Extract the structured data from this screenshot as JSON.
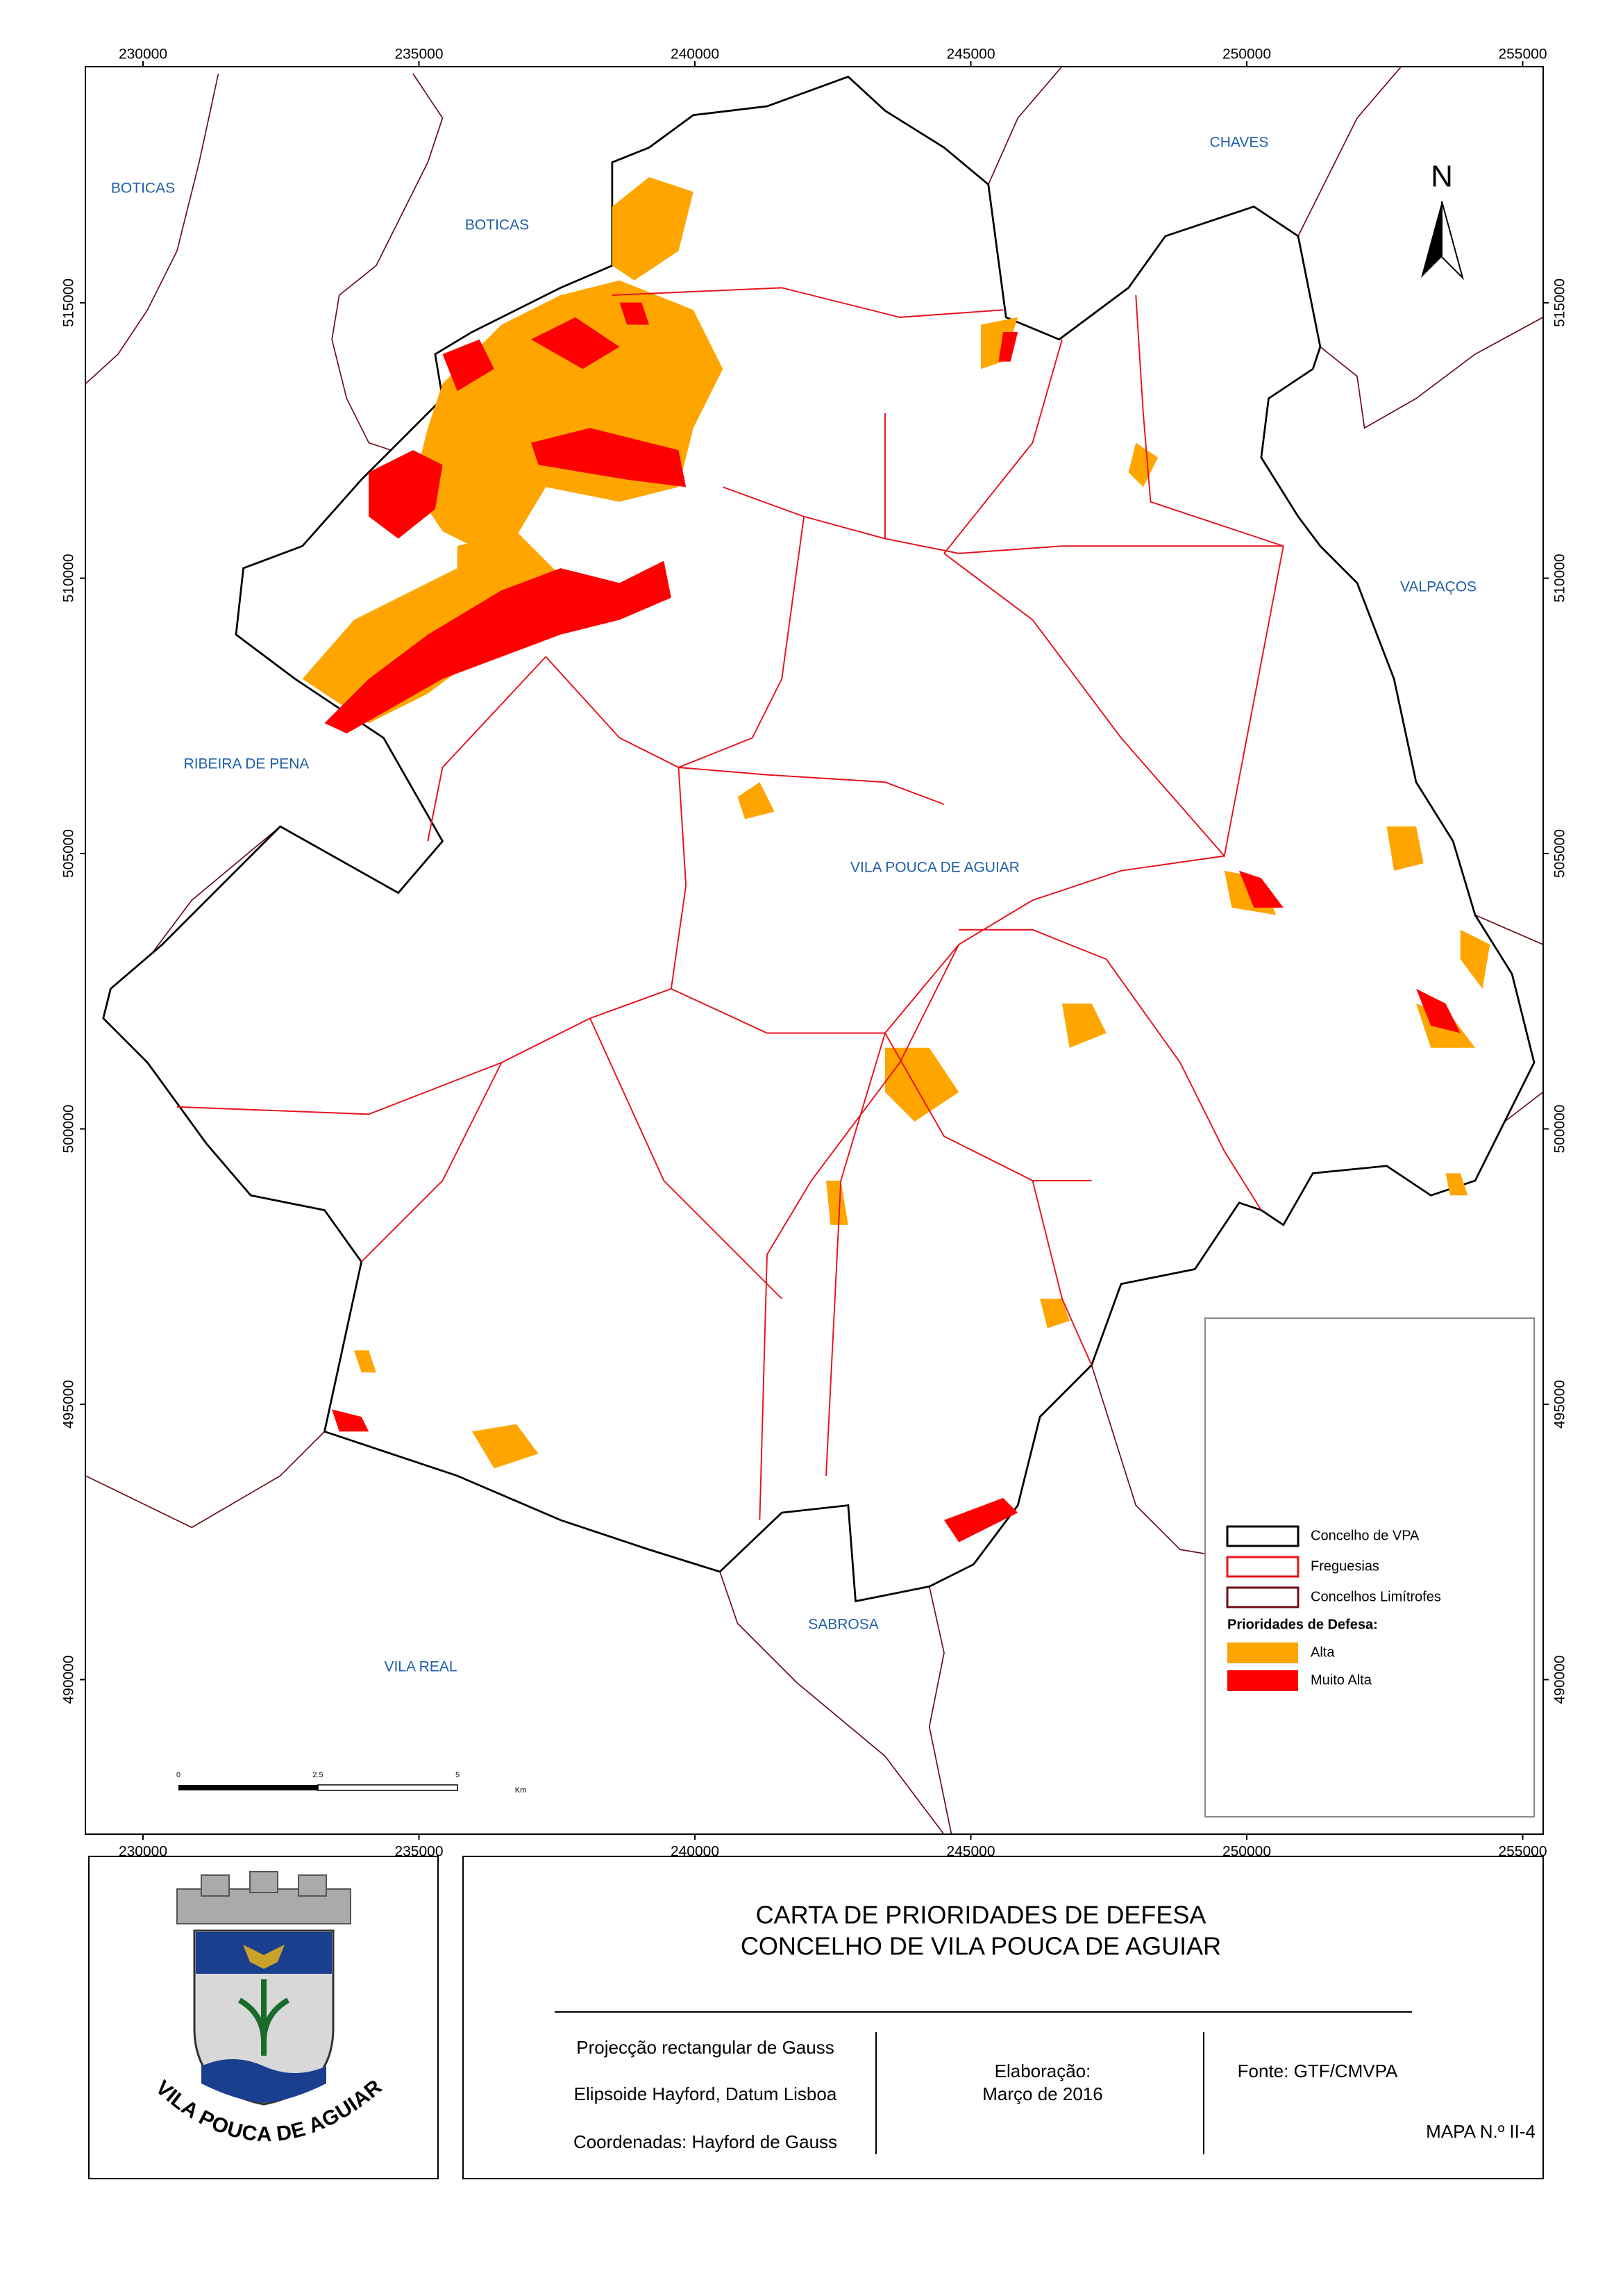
{
  "map": {
    "x_ticks": [
      230000,
      235000,
      240000,
      245000,
      250000,
      255000
    ],
    "y_ticks": [
      515000,
      510000,
      505000,
      500000,
      495000,
      490000
    ],
    "places": [
      "BOTICAS",
      "BOTICAS",
      "CHAVES",
      "VALPAÇOS",
      "RIBEIRA DE PENA",
      "VILA POUCA DE AGUIAR",
      "SABROSA",
      "VILA REAL"
    ],
    "north": "N",
    "scale_bar": {
      "labels": [
        "0",
        "2.5",
        "5"
      ],
      "unit": "Km"
    },
    "legend": {
      "lines": [
        {
          "label": "Concelho de VPA",
          "color": "#000000"
        },
        {
          "label": "Freguesias",
          "color": "#e8101a"
        },
        {
          "label": "Concelhos Limítrofes",
          "color": "#6b0f1a"
        }
      ],
      "section": "Prioridades de Defesa:",
      "classes": [
        {
          "label": "Alta",
          "color": "#ffa500"
        },
        {
          "label": "Muito Alta",
          "color": "#ff0000"
        }
      ]
    }
  },
  "title_block": {
    "title": [
      "CARTA DE PRIORIDADES DE DEFESA",
      "CONCELHO DE VILA POUCA DE AGUIAR"
    ],
    "projection": [
      "Projecção rectangular de Gauss",
      "Elipsoide Hayford, Datum Lisboa",
      "Coordenadas: Hayford de Gauss"
    ],
    "credits": [
      "Elaboração:",
      "Março de 2016"
    ],
    "source": "Fonte: GTF/CMVPA",
    "map_number": "MAPA N.º II-4"
  },
  "logo": {
    "motto": "VILA POUCA DE AGUIAR"
  }
}
